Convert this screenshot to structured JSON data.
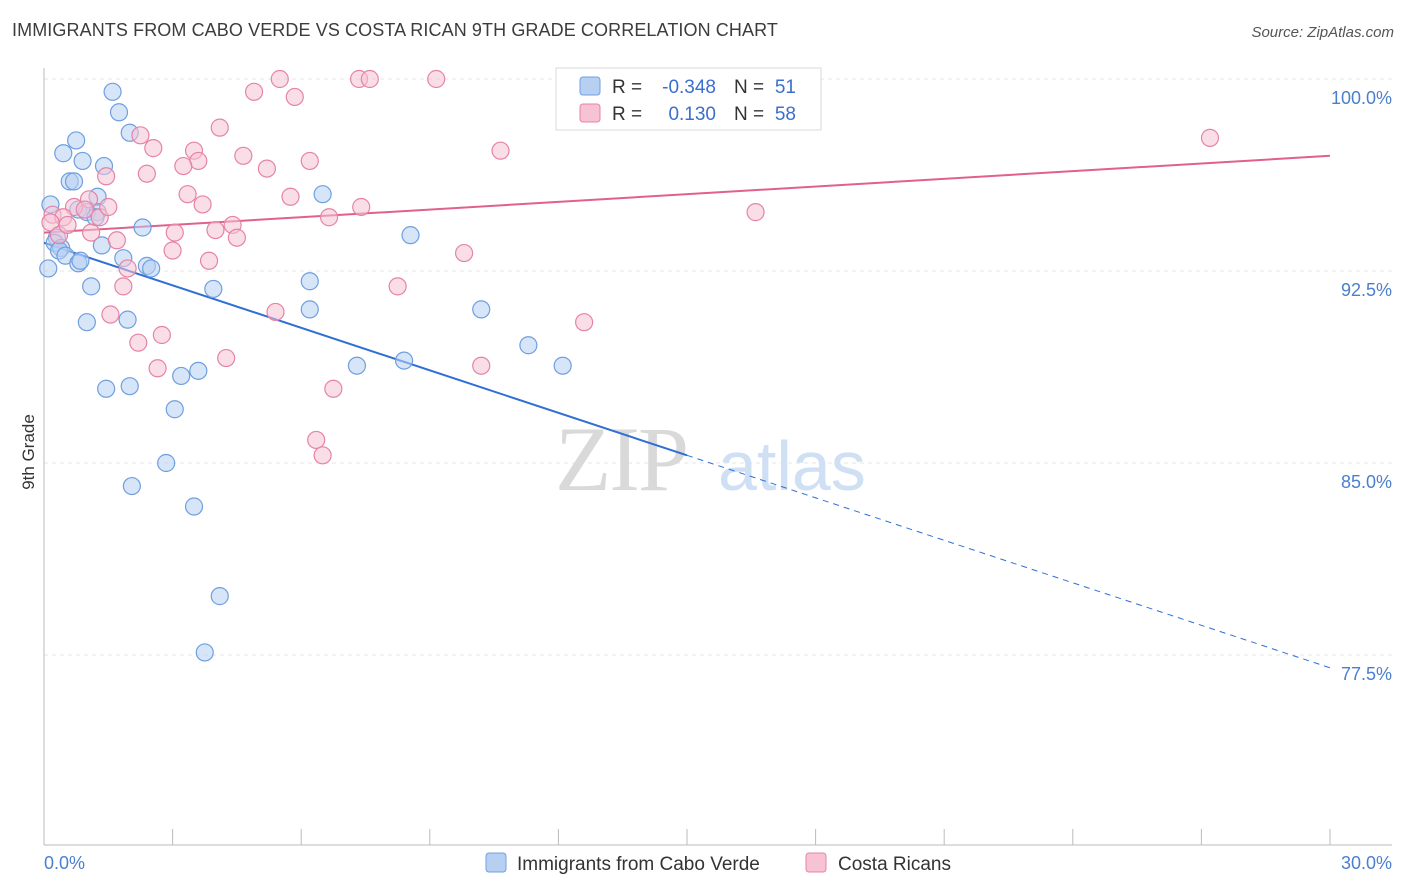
{
  "title": "IMMIGRANTS FROM CABO VERDE VS COSTA RICAN 9TH GRADE CORRELATION CHART",
  "source": "Source: ZipAtlas.com",
  "chart_data": {
    "type": "scatter",
    "xlabel": "",
    "ylabel": "9th Grade",
    "xlim": [
      0,
      30
    ],
    "ylim": [
      71.0,
      100.8
    ],
    "x_tick_labels": [
      "0.0%",
      "30.0%"
    ],
    "y_ticks": [
      77.5,
      85.0,
      92.5,
      100.0
    ],
    "y_tick_labels": [
      "77.5%",
      "85.0%",
      "92.5%",
      "100.0%"
    ],
    "grid": true,
    "watermark": "ZIPatlas",
    "stats": {
      "r_label": "R =",
      "n_label": "N =",
      "rows": [
        {
          "r": "-0.348",
          "n": "51"
        },
        {
          "r": "0.130",
          "n": "58"
        }
      ]
    },
    "series": [
      {
        "name": "Immigrants from Cabo Verde",
        "color": "#6f9fe0",
        "fill": "#b7d0f2",
        "trend": {
          "x0": 0.0,
          "y0": 93.6,
          "x1": 15.0,
          "y1": 85.3,
          "dash_to_x": 30.0,
          "dash_to_y": 77.0
        },
        "points": [
          [
            1.6,
            99.5
          ],
          [
            1.75,
            98.7
          ],
          [
            2.0,
            97.9
          ],
          [
            0.75,
            97.6
          ],
          [
            0.45,
            97.1
          ],
          [
            0.9,
            96.8
          ],
          [
            1.4,
            96.6
          ],
          [
            0.6,
            96.0
          ],
          [
            0.7,
            96.0
          ],
          [
            1.25,
            95.4
          ],
          [
            6.5,
            95.5
          ],
          [
            0.15,
            95.1
          ],
          [
            0.8,
            94.9
          ],
          [
            1.0,
            94.8
          ],
          [
            1.25,
            94.8
          ],
          [
            1.2,
            94.6
          ],
          [
            2.3,
            94.2
          ],
          [
            0.3,
            93.8
          ],
          [
            0.25,
            93.6
          ],
          [
            0.4,
            93.4
          ],
          [
            1.35,
            93.5
          ],
          [
            0.35,
            93.3
          ],
          [
            0.5,
            93.1
          ],
          [
            1.85,
            93.0
          ],
          [
            0.8,
            92.8
          ],
          [
            0.85,
            92.9
          ],
          [
            2.4,
            92.7
          ],
          [
            2.5,
            92.6
          ],
          [
            0.1,
            92.6
          ],
          [
            6.2,
            92.1
          ],
          [
            1.1,
            91.9
          ],
          [
            3.95,
            91.8
          ],
          [
            8.55,
            93.9
          ],
          [
            1.0,
            90.5
          ],
          [
            1.95,
            90.6
          ],
          [
            6.2,
            91.0
          ],
          [
            10.2,
            91.0
          ],
          [
            11.3,
            89.6
          ],
          [
            8.4,
            89.0
          ],
          [
            7.3,
            88.8
          ],
          [
            12.1,
            88.8
          ],
          [
            3.6,
            88.6
          ],
          [
            3.2,
            88.4
          ],
          [
            2.0,
            88.0
          ],
          [
            1.45,
            87.9
          ],
          [
            3.05,
            87.1
          ],
          [
            2.85,
            85.0
          ],
          [
            2.05,
            84.1
          ],
          [
            3.5,
            83.3
          ],
          [
            4.1,
            79.8
          ],
          [
            3.75,
            77.6
          ]
        ]
      },
      {
        "name": "Costa Ricans",
        "color": "#e683a6",
        "fill": "#f6c2d4",
        "trend": {
          "x0": 0.0,
          "y0": 94.0,
          "x1": 30.0,
          "y1": 97.0
        },
        "points": [
          [
            5.5,
            100.0
          ],
          [
            7.35,
            100.0
          ],
          [
            7.6,
            100.0
          ],
          [
            9.15,
            100.0
          ],
          [
            4.9,
            99.5
          ],
          [
            5.85,
            99.3
          ],
          [
            4.1,
            98.1
          ],
          [
            2.25,
            97.8
          ],
          [
            2.55,
            97.3
          ],
          [
            3.5,
            97.2
          ],
          [
            10.65,
            97.2
          ],
          [
            4.65,
            97.0
          ],
          [
            3.6,
            96.8
          ],
          [
            6.2,
            96.8
          ],
          [
            3.25,
            96.6
          ],
          [
            5.2,
            96.5
          ],
          [
            2.4,
            96.3
          ],
          [
            1.45,
            96.2
          ],
          [
            3.35,
            95.5
          ],
          [
            5.75,
            95.4
          ],
          [
            1.05,
            95.3
          ],
          [
            3.7,
            95.1
          ],
          [
            7.4,
            95.0
          ],
          [
            0.7,
            95.0
          ],
          [
            27.2,
            97.7
          ],
          [
            16.6,
            94.8
          ],
          [
            0.95,
            94.9
          ],
          [
            0.2,
            94.7
          ],
          [
            0.45,
            94.6
          ],
          [
            1.3,
            94.6
          ],
          [
            6.65,
            94.6
          ],
          [
            0.15,
            94.4
          ],
          [
            4.4,
            94.3
          ],
          [
            4.0,
            94.1
          ],
          [
            3.05,
            94.0
          ],
          [
            0.35,
            93.9
          ],
          [
            4.5,
            93.8
          ],
          [
            1.7,
            93.7
          ],
          [
            3.0,
            93.3
          ],
          [
            9.8,
            93.2
          ],
          [
            3.85,
            92.9
          ],
          [
            1.95,
            92.6
          ],
          [
            8.25,
            91.9
          ],
          [
            1.85,
            91.9
          ],
          [
            5.4,
            90.9
          ],
          [
            1.55,
            90.8
          ],
          [
            12.6,
            90.5
          ],
          [
            2.75,
            90.0
          ],
          [
            2.2,
            89.7
          ],
          [
            4.25,
            89.1
          ],
          [
            10.2,
            88.8
          ],
          [
            2.65,
            88.7
          ],
          [
            6.75,
            87.9
          ],
          [
            6.35,
            85.9
          ],
          [
            6.5,
            85.3
          ],
          [
            1.1,
            94.0
          ],
          [
            0.55,
            94.3
          ],
          [
            1.5,
            95.0
          ]
        ]
      }
    ]
  }
}
